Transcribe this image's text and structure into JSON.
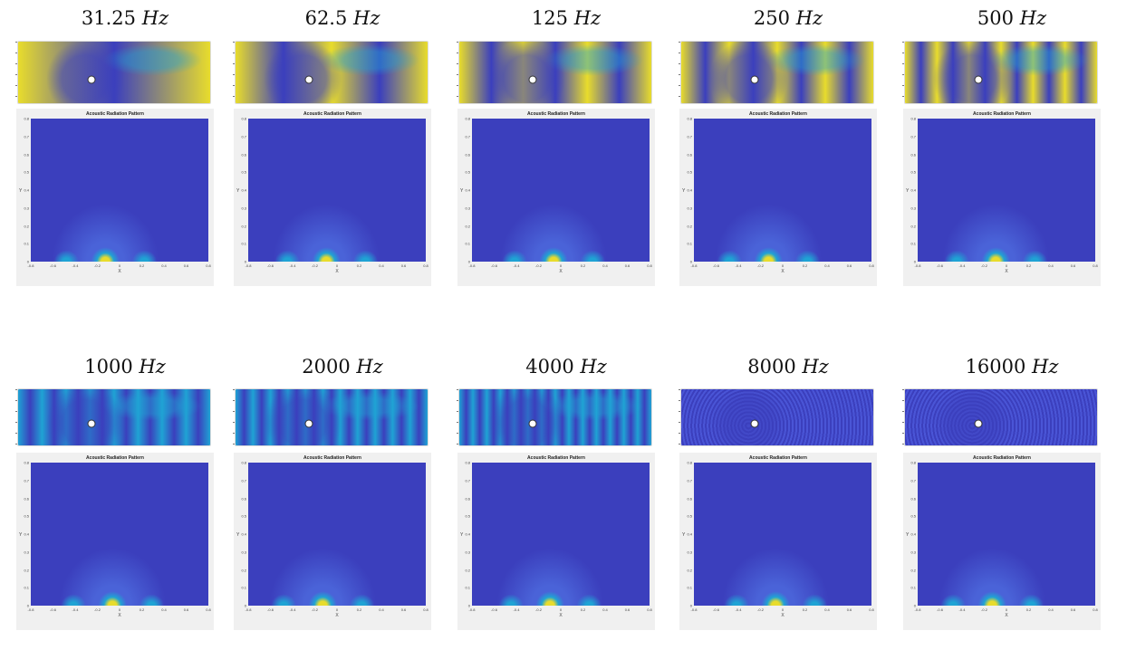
{
  "figure": {
    "panel_title": "Acoustic Radiation Pattern",
    "x_axis_label": "X",
    "y_axis_label": "Y",
    "x_ticks": [
      "-0.8",
      "-0.6",
      "-0.4",
      "-0.2",
      "0",
      "0.2",
      "0.4",
      "0.6",
      "0.8"
    ],
    "y_ticks": [
      "0",
      "0.1",
      "0.2",
      "0.3",
      "0.4",
      "0.5",
      "0.6",
      "0.7",
      "0.8"
    ],
    "unit": "Hz",
    "frequencies": [
      "31.25",
      "62.5",
      "125",
      "250",
      "500",
      "1000",
      "2000",
      "4000",
      "8000",
      "16000"
    ],
    "colors": {
      "low": "#3b3fbd",
      "mid": "#1fa3d4",
      "high": "#e8dc2c",
      "peak": "#f3a531",
      "panel_bg": "#f0f0f0"
    }
  }
}
